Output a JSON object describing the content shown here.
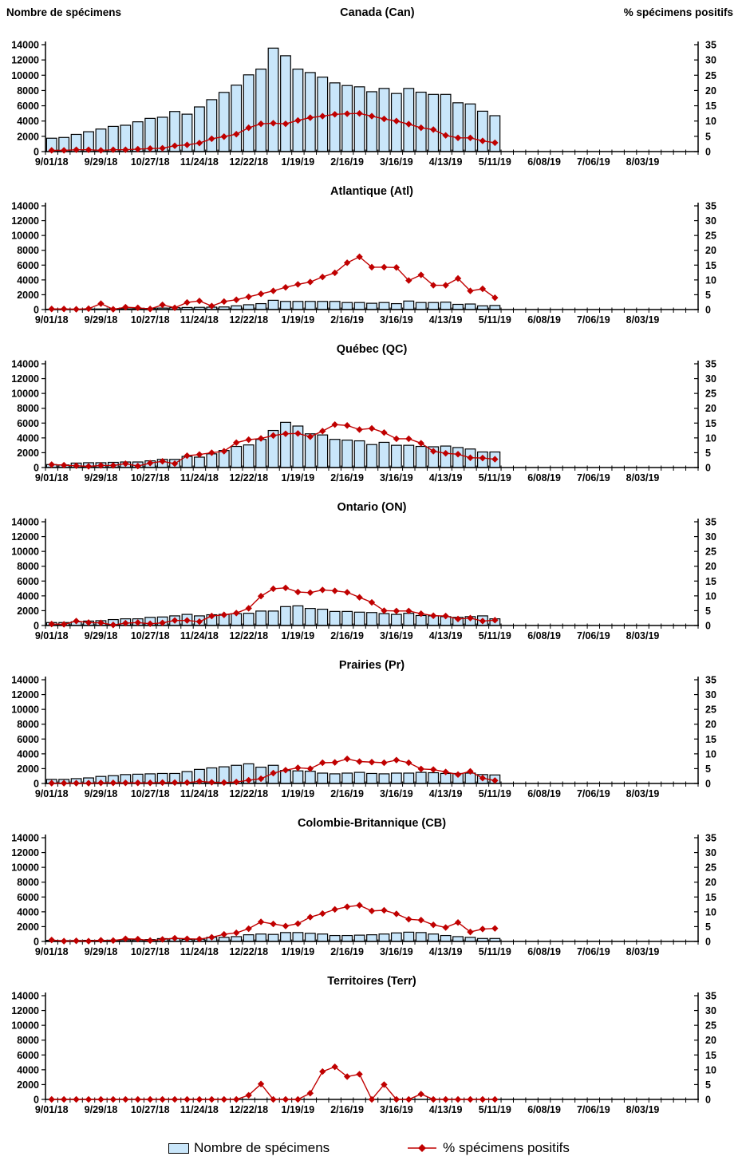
{
  "page": {
    "left_axis_title": "Nombre de spécimens",
    "right_axis_title": "% spécimens positifs",
    "legend_bars": "Nombre de spécimens",
    "legend_line": "% spécimens positifs"
  },
  "colors": {
    "bar_fill": "#C9E6FA",
    "bar_stroke": "#000000",
    "line_color": "#C00000",
    "axis_color": "#000000"
  },
  "axes": {
    "y_left": {
      "min": 0,
      "max": 14000,
      "step": 2000,
      "labels": [
        "0",
        "2000",
        "4000",
        "6000",
        "8000",
        "10000",
        "12000",
        "14000"
      ]
    },
    "y_right": {
      "min": 0,
      "max": 35,
      "step": 5,
      "labels": [
        "0",
        "5",
        "10",
        "15",
        "20",
        "25",
        "30",
        "35"
      ]
    },
    "x_label_every": 4,
    "x_tick_labels": [
      "9/01/18",
      "9/29/18",
      "10/27/18",
      "11/24/18",
      "12/22/18",
      "1/19/19",
      "2/16/19",
      "3/16/19",
      "4/13/19",
      "5/11/19",
      "6/08/19",
      "7/06/19",
      "8/03/19"
    ],
    "week_dates": [
      "9/01/18",
      "9/08/18",
      "9/15/18",
      "9/22/18",
      "9/29/18",
      "10/06/18",
      "10/13/18",
      "10/20/18",
      "10/27/18",
      "11/03/18",
      "11/10/18",
      "11/17/18",
      "11/24/18",
      "12/01/18",
      "12/08/18",
      "12/15/18",
      "12/22/18",
      "12/29/18",
      "1/05/19",
      "1/12/19",
      "1/19/19",
      "1/26/19",
      "2/02/19",
      "2/09/19",
      "2/16/19",
      "2/23/19",
      "3/02/19",
      "3/09/19",
      "3/16/19",
      "3/23/19",
      "3/30/19",
      "4/06/19",
      "4/13/19",
      "4/20/19",
      "4/27/19",
      "5/04/19",
      "5/11/19",
      "5/18/19",
      "5/25/19",
      "6/01/19",
      "6/08/19",
      "6/15/19",
      "6/22/19",
      "6/29/19",
      "7/06/19",
      "7/13/19",
      "7/20/19",
      "7/27/19",
      "8/03/19",
      "8/10/19",
      "8/17/19",
      "8/24/19",
      "8/31/19"
    ]
  },
  "chart_data": [
    {
      "type": "bar+line",
      "region": "Canada (Can)",
      "code": "canada",
      "series_bars_label": "Nombre de spécimens",
      "series_line_label": "% spécimens positifs",
      "specimens": [
        1750,
        1850,
        2250,
        2600,
        2950,
        3300,
        3450,
        3900,
        4350,
        4500,
        5250,
        4900,
        5850,
        6800,
        7750,
        8700,
        10050,
        10800,
        13550,
        12550,
        10800,
        10350,
        9750,
        9000,
        8650,
        8480,
        7840,
        8270,
        7610,
        8270,
        7780,
        7490,
        7490,
        6390,
        6240,
        5290,
        4700
      ],
      "pct_positifs": [
        0.4,
        0.4,
        0.6,
        0.6,
        0.4,
        0.6,
        0.6,
        0.8,
        1.0,
        1.1,
        1.9,
        2.2,
        2.8,
        4.2,
        4.9,
        5.7,
        7.8,
        9.1,
        9.3,
        9.1,
        10.2,
        11.1,
        11.6,
        12.2,
        12.4,
        12.5,
        11.6,
        10.7,
        10.0,
        9.0,
        7.8,
        7.2,
        5.3,
        4.5,
        4.5,
        3.5,
        2.9
      ]
    },
    {
      "type": "bar+line",
      "region": "Atlantique (Atl)",
      "code": "atlantique",
      "specimens": [
        50,
        50,
        50,
        80,
        80,
        100,
        100,
        120,
        150,
        200,
        250,
        280,
        300,
        320,
        350,
        500,
        650,
        800,
        1250,
        1100,
        1100,
        1100,
        1100,
        1100,
        950,
        950,
        850,
        950,
        800,
        1150,
        950,
        950,
        1000,
        700,
        750,
        500,
        550
      ],
      "pct_positifs": [
        0.2,
        0.2,
        0.1,
        0.3,
        2.0,
        0.1,
        0.8,
        0.6,
        0.2,
        1.6,
        0.6,
        2.4,
        2.9,
        1.2,
        2.7,
        3.3,
        4.3,
        5.3,
        6.3,
        7.5,
        8.5,
        9.3,
        11.0,
        12.4,
        15.8,
        17.8,
        14.3,
        14.3,
        14.2,
        9.8,
        11.7,
        8.2,
        8.2,
        10.5,
        6.3,
        7.0,
        4.0
      ]
    },
    {
      "type": "bar+line",
      "region": "Québec (QC)",
      "code": "quebec",
      "specimens": [
        400,
        350,
        600,
        650,
        650,
        700,
        750,
        750,
        900,
        1100,
        1100,
        1500,
        1400,
        1850,
        2300,
        2850,
        3050,
        3800,
        5000,
        6100,
        5600,
        4550,
        4400,
        3800,
        3700,
        3600,
        3100,
        3400,
        3000,
        3000,
        2850,
        2800,
        2900,
        2700,
        2500,
        2100,
        2100
      ],
      "pct_positifs": [
        1.0,
        0.8,
        0.6,
        0.4,
        0.7,
        0.7,
        1.3,
        0.5,
        1.5,
        2.1,
        1.3,
        4.0,
        4.4,
        5.0,
        5.5,
        8.4,
        9.4,
        9.8,
        10.8,
        11.4,
        11.5,
        10.4,
        12.3,
        14.5,
        14.2,
        12.8,
        13.2,
        11.8,
        9.7,
        9.7,
        8.2,
        5.5,
        4.8,
        4.5,
        3.3,
        3.2,
        2.8
      ]
    },
    {
      "type": "bar+line",
      "region": "Ontario (ON)",
      "code": "ontario",
      "specimens": [
        400,
        400,
        500,
        600,
        650,
        800,
        900,
        900,
        1100,
        1150,
        1300,
        1500,
        1300,
        1450,
        1500,
        1600,
        1650,
        1950,
        1950,
        2550,
        2650,
        2300,
        2200,
        1900,
        1900,
        1800,
        1750,
        1600,
        1500,
        1650,
        1350,
        1300,
        1200,
        1100,
        1200,
        1300,
        900
      ],
      "pct_positifs": [
        0.5,
        0.4,
        1.5,
        1.0,
        0.9,
        0.2,
        0.8,
        1.0,
        0.6,
        0.9,
        1.7,
        1.7,
        1.3,
        3.2,
        3.6,
        4.2,
        5.8,
        9.9,
        12.4,
        12.7,
        11.3,
        11.1,
        12.0,
        11.7,
        11.2,
        9.5,
        7.8,
        5.0,
        4.9,
        4.9,
        4.0,
        3.3,
        3.2,
        2.2,
        2.5,
        1.5,
        1.8
      ]
    },
    {
      "type": "bar+line",
      "region": "Prairies (Pr)",
      "code": "prairies",
      "specimens": [
        550,
        550,
        650,
        750,
        950,
        1050,
        1200,
        1250,
        1300,
        1350,
        1350,
        1600,
        1900,
        2100,
        2250,
        2450,
        2650,
        2200,
        2450,
        1750,
        1700,
        1650,
        1400,
        1300,
        1400,
        1500,
        1350,
        1300,
        1400,
        1400,
        1500,
        1450,
        1350,
        1350,
        1400,
        1200,
        1150
      ],
      "pct_positifs": [
        0.1,
        0.1,
        0.1,
        0.1,
        0.2,
        0.2,
        0.2,
        0.2,
        0.2,
        0.3,
        0.3,
        0.3,
        0.7,
        0.4,
        0.3,
        0.5,
        1.1,
        1.6,
        3.5,
        4.5,
        5.3,
        5.0,
        7.0,
        7.1,
        8.3,
        7.4,
        7.2,
        7.0,
        7.9,
        7.0,
        4.9,
        4.7,
        3.9,
        3.0,
        4.1,
        1.8,
        1.0
      ]
    },
    {
      "type": "bar+line",
      "region": "Colombie-Britannique (CB)",
      "code": "colombie-britannique",
      "specimens": [
        150,
        120,
        130,
        150,
        150,
        170,
        200,
        200,
        250,
        380,
        380,
        280,
        300,
        550,
        550,
        650,
        900,
        1000,
        950,
        1200,
        1200,
        1100,
        1000,
        800,
        800,
        850,
        900,
        1000,
        1150,
        1250,
        1200,
        1000,
        800,
        650,
        550,
        400,
        400
      ],
      "pct_positifs": [
        0.5,
        0.1,
        0.2,
        0.1,
        0.4,
        0.3,
        0.9,
        0.8,
        0.3,
        0.7,
        1.1,
        0.9,
        0.8,
        1.4,
        2.4,
        2.9,
        4.3,
        6.6,
        5.9,
        5.2,
        6.0,
        8.2,
        9.4,
        10.8,
        11.7,
        12.2,
        10.3,
        10.5,
        9.3,
        7.5,
        7.2,
        5.6,
        4.7,
        6.4,
        3.2,
        4.2,
        4.4
      ]
    },
    {
      "type": "bar+line",
      "region": "Territoires (Terr)",
      "code": "territoires",
      "specimens": [
        0,
        0,
        0,
        0,
        0,
        0,
        0,
        0,
        0,
        0,
        0,
        0,
        0,
        0,
        0,
        0,
        0,
        0,
        0,
        0,
        0,
        0,
        0,
        0,
        0,
        0,
        0,
        0,
        0,
        0,
        0,
        0,
        0,
        0,
        0,
        0,
        0
      ],
      "pct_positifs": [
        0,
        0,
        0,
        0,
        0,
        0,
        0,
        0,
        0,
        0,
        0,
        0,
        0,
        0,
        0,
        0,
        1.4,
        5.2,
        0,
        0,
        0,
        2.1,
        9.4,
        11.0,
        7.7,
        8.5,
        0,
        5.0,
        0,
        0,
        1.8,
        0,
        0,
        0,
        0,
        0,
        0
      ]
    }
  ]
}
